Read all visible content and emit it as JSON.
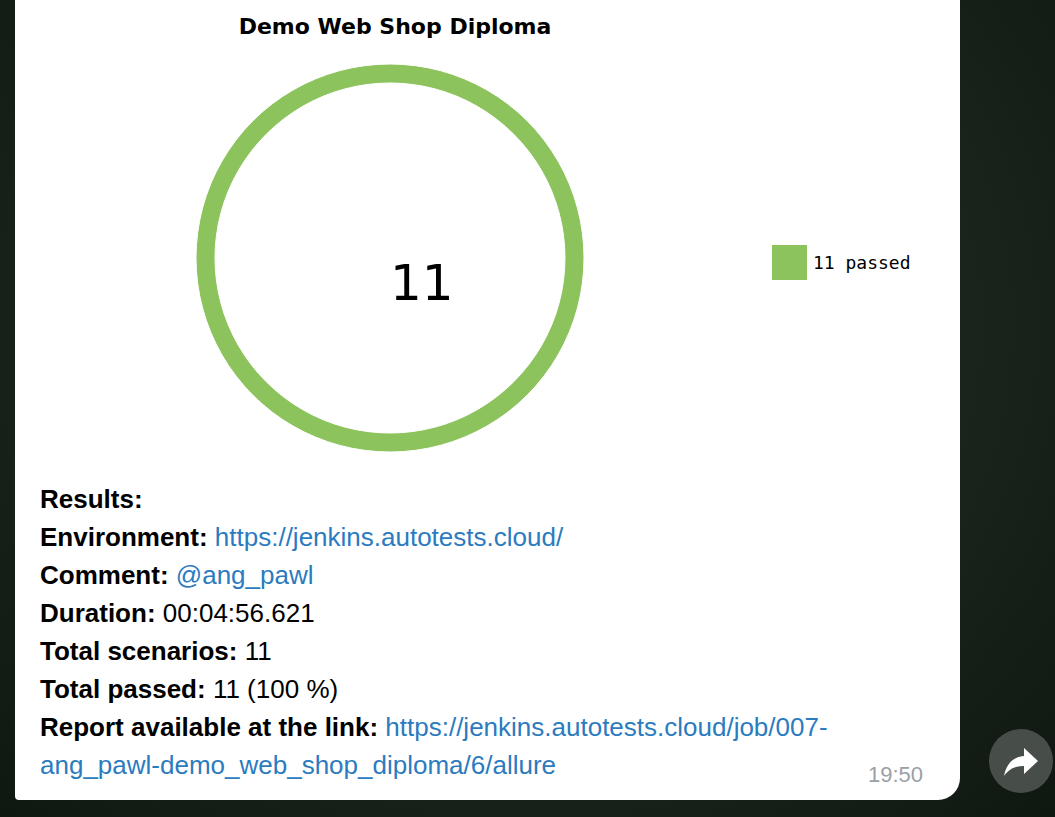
{
  "chart_data": {
    "type": "pie",
    "title": "Demo Web Shop Diploma",
    "categories": [
      "11 passed"
    ],
    "values": [
      11
    ],
    "colors": [
      "#8cc35c"
    ],
    "total": 11,
    "legend": "right"
  },
  "message": {
    "heading": "Results:",
    "fields": [
      {
        "label": "Environment:",
        "value": "https://jenkins.autotests.cloud/",
        "link": true
      },
      {
        "label": "Comment:",
        "value": "@ang_pawl",
        "link": true
      },
      {
        "label": "Duration:",
        "value": "00:04:56.621",
        "link": false
      },
      {
        "label": "Total scenarios:",
        "value": "11",
        "link": false
      },
      {
        "label": "Total passed:",
        "value": "11 (100 %)",
        "link": false
      },
      {
        "label": "Report available at the link:",
        "value": "https://jenkins.autotests.cloud/job/007-ang_pawl-demo_web_shop_diploma/6/allure",
        "link": true
      }
    ],
    "time": "19:50"
  }
}
